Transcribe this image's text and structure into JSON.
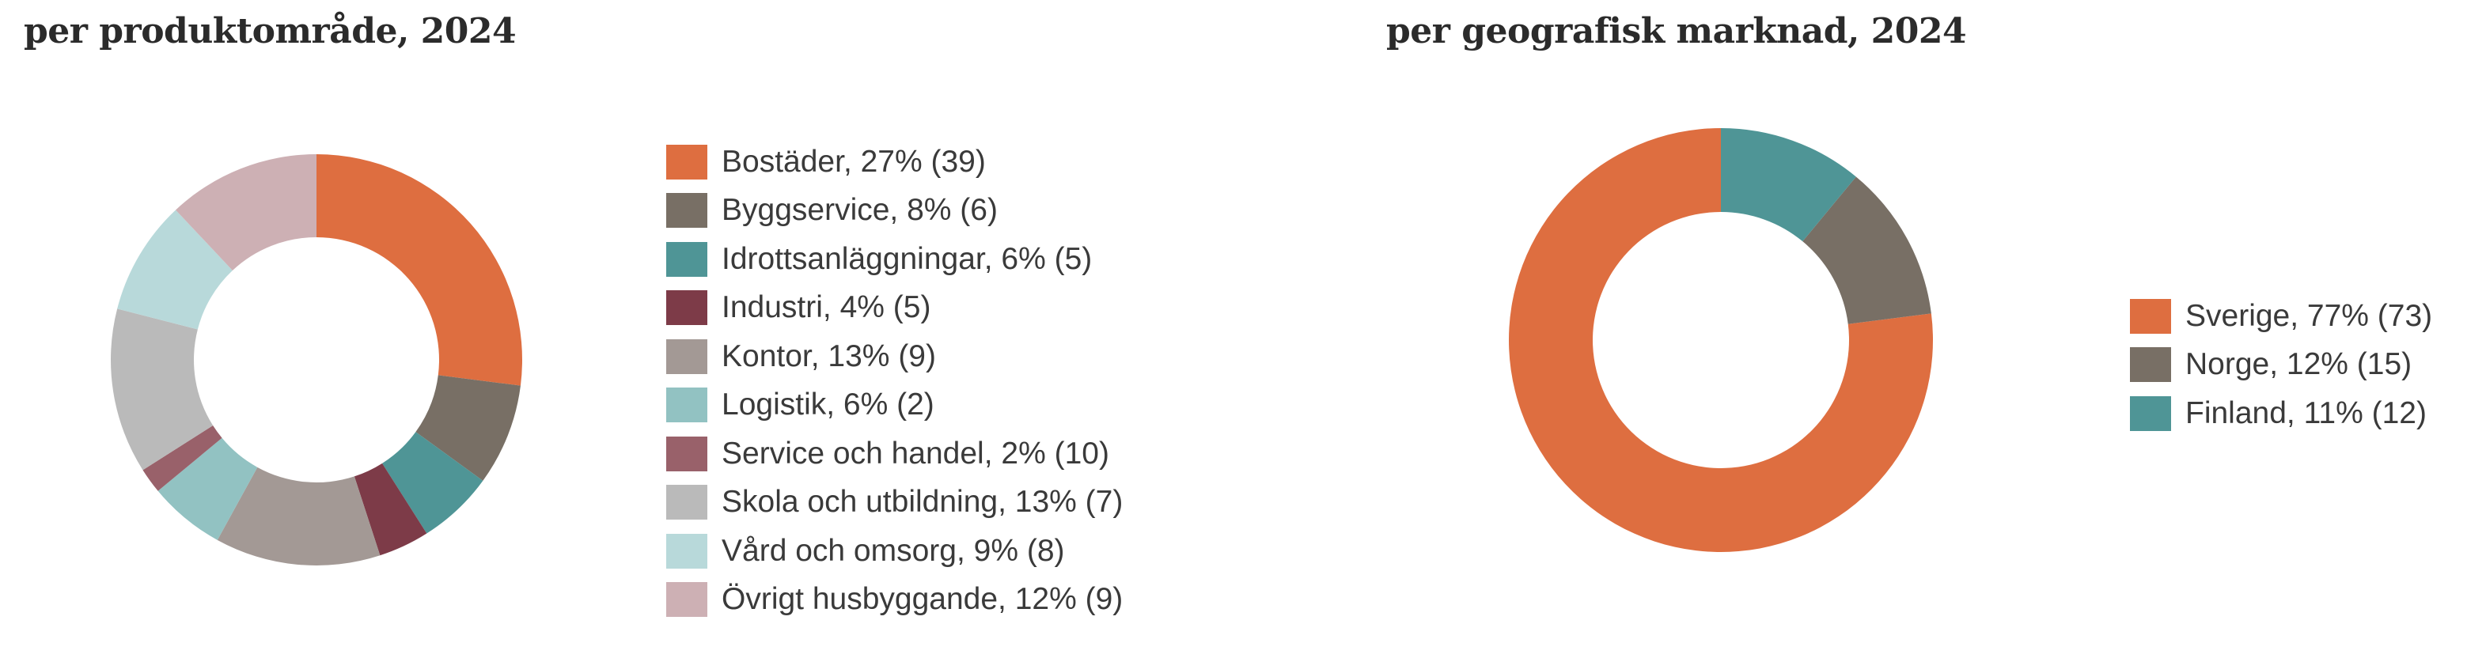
{
  "chart_data": [
    {
      "type": "pie",
      "title": "per produktområde, 2024",
      "categories": [
        "Bostäder",
        "Byggservice",
        "Idrottsanläggningar",
        "Industri",
        "Kontor",
        "Logistik",
        "Service och handel",
        "Skola och utbildning",
        "Vård och omsorg",
        "Övrigt husbyggande"
      ],
      "values": [
        27,
        8,
        6,
        4,
        13,
        6,
        2,
        13,
        9,
        12
      ],
      "unit": "%",
      "counts": [
        39,
        6,
        5,
        5,
        9,
        2,
        10,
        7,
        8,
        9
      ],
      "colors": [
        "#de6e40",
        "#786f65",
        "#4f9596",
        "#7d3b48",
        "#a39995",
        "#92c2c2",
        "#99616a",
        "#bababa",
        "#b8d9da",
        "#cdb0b4"
      ],
      "legend_labels": [
        "Bostäder, 27% (39)",
        "Byggservice, 8% (6)",
        "Idrottsanläggningar, 6% (5)",
        "Industri, 4% (5)",
        "Kontor, 13% (9)",
        "Logistik, 6% (2)",
        "Service och handel, 2% (10)",
        "Skola och utbildning, 13% (7)",
        "Vård och omsorg, 9% (8)",
        "Övrigt husbyggande, 12% (9)"
      ],
      "legend_position": "right",
      "donut": true
    },
    {
      "type": "pie",
      "title": "per geografisk marknad, 2024",
      "categories": [
        "Sverige",
        "Norge",
        "Finland"
      ],
      "values": [
        77,
        12,
        11
      ],
      "unit": "%",
      "counts": [
        73,
        15,
        12
      ],
      "colors": [
        "#de6e40",
        "#786f65",
        "#4f9596"
      ],
      "legend_labels": [
        "Sverige, 77% (73)",
        "Norge, 12% (15)",
        "Finland, 11% (12)"
      ],
      "legend_position": "right",
      "donut": true
    }
  ]
}
